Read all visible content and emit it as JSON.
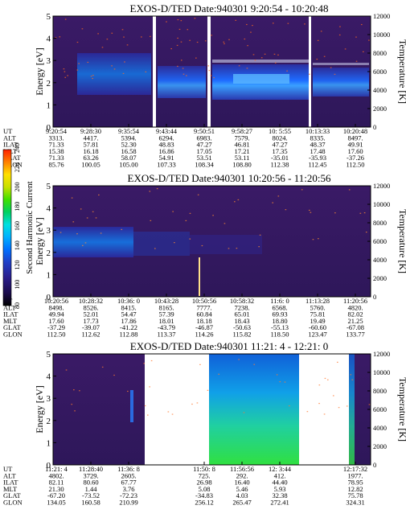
{
  "chart_data": [
    {
      "type": "heatmap",
      "title": "EXOS-D/TED   Date:940301  9:20:54 - 10:20:48",
      "ylabel": "Energy [eV]",
      "y2label": "Temperature [K]",
      "ylim": [
        0,
        5
      ],
      "y_ticks": [
        "0",
        "1",
        "2",
        "3",
        "4",
        "5"
      ],
      "y2lim": [
        0,
        12000
      ],
      "y2_ticks": [
        "0",
        "2000",
        "4000",
        "6000",
        "8000",
        "10000",
        "12000"
      ],
      "data_gaps": [
        [
          "9:40:10",
          "9:41:20"
        ],
        [
          "9:51:40",
          "9:52:40"
        ],
        [
          "10:14:00",
          "10:15:00"
        ]
      ],
      "orbit_table": {
        "row_labels": [
          "UT",
          "ALT",
          "ILAT",
          "MLT",
          "GLAT",
          "GLON"
        ],
        "columns": [
          [
            "9:20:54",
            "3313.",
            "71.33",
            "15.38",
            "71.33",
            "85.76"
          ],
          [
            "9:28:30",
            "4417.",
            "57.81",
            "16.18",
            "63.26",
            "100.05"
          ],
          [
            "9:35:54",
            "5394.",
            "52.30",
            "16.58",
            "58.07",
            "105.00"
          ],
          [
            "9:43:44",
            "6294.",
            "48.83",
            "16.86",
            "54.91",
            "107.33"
          ],
          [
            "9:50:51",
            "6983.",
            "47.27",
            "17.05",
            "53.51",
            "108.34"
          ],
          [
            "9:58:27",
            "7579.",
            "46.81",
            "17.21",
            "53.11",
            "108.80"
          ],
          [
            "10: 5:55",
            "8024.",
            "47.27",
            "17.35",
            "-35.01",
            "112.38"
          ],
          [
            "10:13:33",
            "8335.",
            "48.37",
            "17.48",
            "-35.93",
            "112.45"
          ],
          [
            "10:20:48",
            "8497.",
            "49.91",
            "17.60",
            "-37.26",
            "112.50"
          ]
        ]
      }
    },
    {
      "type": "heatmap",
      "title": "EXOS-D/TED   Date:940301  10:20:56 - 11:20:56",
      "ylabel": "Energy [eV]",
      "y2label": "Temperature [K]",
      "ylim": [
        0,
        5
      ],
      "y_ticks": [
        "0",
        "1",
        "2",
        "3",
        "4",
        "5"
      ],
      "y2lim": [
        0,
        12000
      ],
      "y2_ticks": [
        "0",
        "2000",
        "4000",
        "6000",
        "8000",
        "10000",
        "12000"
      ],
      "orbit_table": {
        "row_labels": [
          "UT",
          "ALT",
          "ILAT",
          "MLT",
          "GLAT",
          "GLON"
        ],
        "columns": [
          [
            "10:20:56",
            "8498.",
            "49.94",
            "17.60",
            "-37.29",
            "112.50"
          ],
          [
            "10:28:32",
            "8526.",
            "52.01",
            "17.73",
            "-39.07",
            "112.62"
          ],
          [
            "10:36: 0",
            "8415.",
            "54.47",
            "17.86",
            "-41.22",
            "112.88"
          ],
          [
            "10:43:28",
            "8165.",
            "57.39",
            "18.01",
            "-43.79",
            "113.37"
          ],
          [
            "10:50:56",
            "7777.",
            "60.84",
            "18.18",
            "-46.87",
            "114.26"
          ],
          [
            "10:58:32",
            "7238.",
            "65.01",
            "18.43",
            "-50.63",
            "115.82"
          ],
          [
            "11:6: 0",
            "6568.",
            "69.93",
            "18.80",
            "-55.13",
            "118.50"
          ],
          [
            "11:13:28",
            "5760.",
            "75.81",
            "19.49",
            "-60.60",
            "123.47"
          ],
          [
            "11:20:56",
            "4820.",
            "82.02",
            "21.25",
            "-67.08",
            "133.77"
          ]
        ]
      }
    },
    {
      "type": "heatmap",
      "title": "EXOS-D/TED   Date:940301  11:21: 4 - 12:21: 0",
      "ylabel": "Energy [eV]",
      "y2label": "Temperature [K]",
      "ylim": [
        0,
        5
      ],
      "y_ticks": [
        "0",
        "1",
        "2",
        "3",
        "4",
        "5"
      ],
      "y2lim": [
        0,
        12000
      ],
      "y2_ticks": [
        "0",
        "2000",
        "4000",
        "6000",
        "8000",
        "10000",
        "12000"
      ],
      "data_gaps": [
        [
          "11:36:30",
          "11:50:50"
        ],
        [
          "12:5:30",
          "12:17:00"
        ]
      ],
      "orbit_table": {
        "row_labels": [
          "UT",
          "ALT",
          "ILAT",
          "MLT",
          "GLAT",
          "GLON"
        ],
        "columns": [
          [
            "11:21: 4",
            "4802.",
            "82.11",
            "21.30",
            "-67.20",
            "134.05"
          ],
          [
            "11:28:40",
            "3729.",
            "80.60",
            "1.44",
            "-73.52",
            "160.58"
          ],
          [
            "11:36: 8",
            "2605.",
            "67.77",
            "3.76",
            "-72.23",
            "210.99"
          ],
          [
            "11:50: 8",
            "725.",
            "26.98",
            "5.08",
            "-34.83",
            "256.12"
          ],
          [
            "11:56:56",
            "292.",
            "16.40",
            "5.46",
            "4.03",
            "265.47"
          ],
          [
            "12: 3:44",
            "412.",
            "44.40",
            "5.93",
            "32.38",
            "272.41"
          ],
          [
            "12:17:32",
            "1977.",
            "78.95",
            "12.82",
            "75.78",
            "324.31"
          ]
        ]
      }
    }
  ],
  "colorbar": {
    "label": "Second Harmonic Current",
    "ticks": [
      "80",
      "100",
      "120",
      "140",
      "160",
      "180",
      "200",
      "220",
      "240"
    ],
    "colors": [
      "#000000",
      "#1a0a4a",
      "#2a1e8c",
      "#2040c8",
      "#0070ff",
      "#00b0ff",
      "#00e0e0",
      "#00d060",
      "#40e000",
      "#c8e000",
      "#ffe000",
      "#ff8000",
      "#ff2000"
    ]
  }
}
